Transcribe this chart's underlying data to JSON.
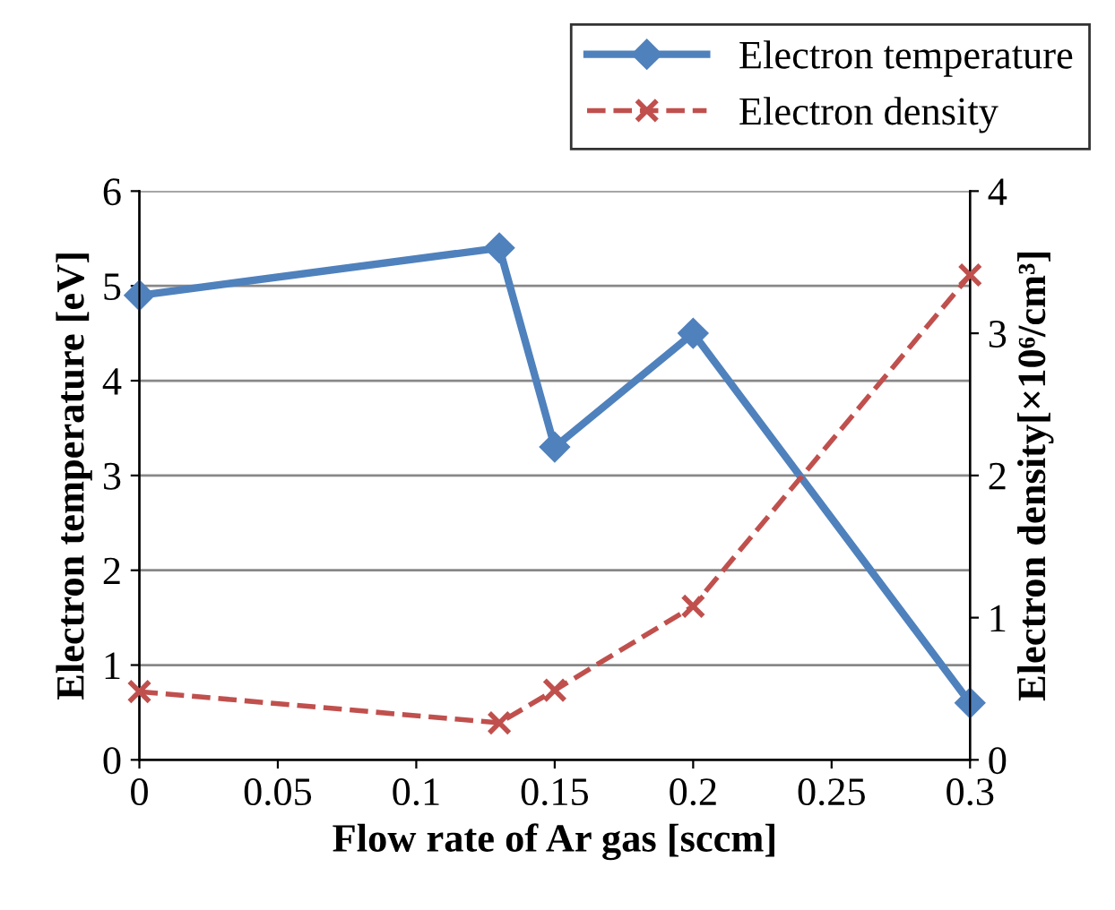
{
  "chart_data": {
    "type": "line",
    "xlabel": "Flow rate of Ar gas [sccm]",
    "ylabel": "Electron temperature [eV]",
    "y2label": "Electron density[×10⁶/cm³]",
    "x": [
      0,
      0.13,
      0.15,
      0.2,
      0.3
    ],
    "series": [
      {
        "name": "Electron temperature",
        "color": "#4f81bd",
        "values": [
          4.9,
          5.4,
          3.3,
          4.5,
          0.6
        ],
        "marker": "diamond",
        "line_style": "solid"
      },
      {
        "name": "Electron density",
        "color": "#c0504d",
        "values": [
          0.48,
          0.26,
          0.49,
          1.08,
          3.41
        ],
        "marker": "cross",
        "line_style": "dashed",
        "axis": "y2"
      }
    ],
    "xlim": [
      0,
      0.3
    ],
    "xticks": [
      0,
      0.05,
      0.1,
      0.15,
      0.2,
      0.25,
      0.3
    ],
    "ylim": [
      0,
      6
    ],
    "yticks": [
      0,
      1,
      2,
      3,
      4,
      5,
      6
    ],
    "y2lim": [
      0,
      4
    ],
    "y2ticks": [
      0,
      1,
      2,
      3,
      4
    ],
    "grid": "y",
    "legend": "top right"
  }
}
